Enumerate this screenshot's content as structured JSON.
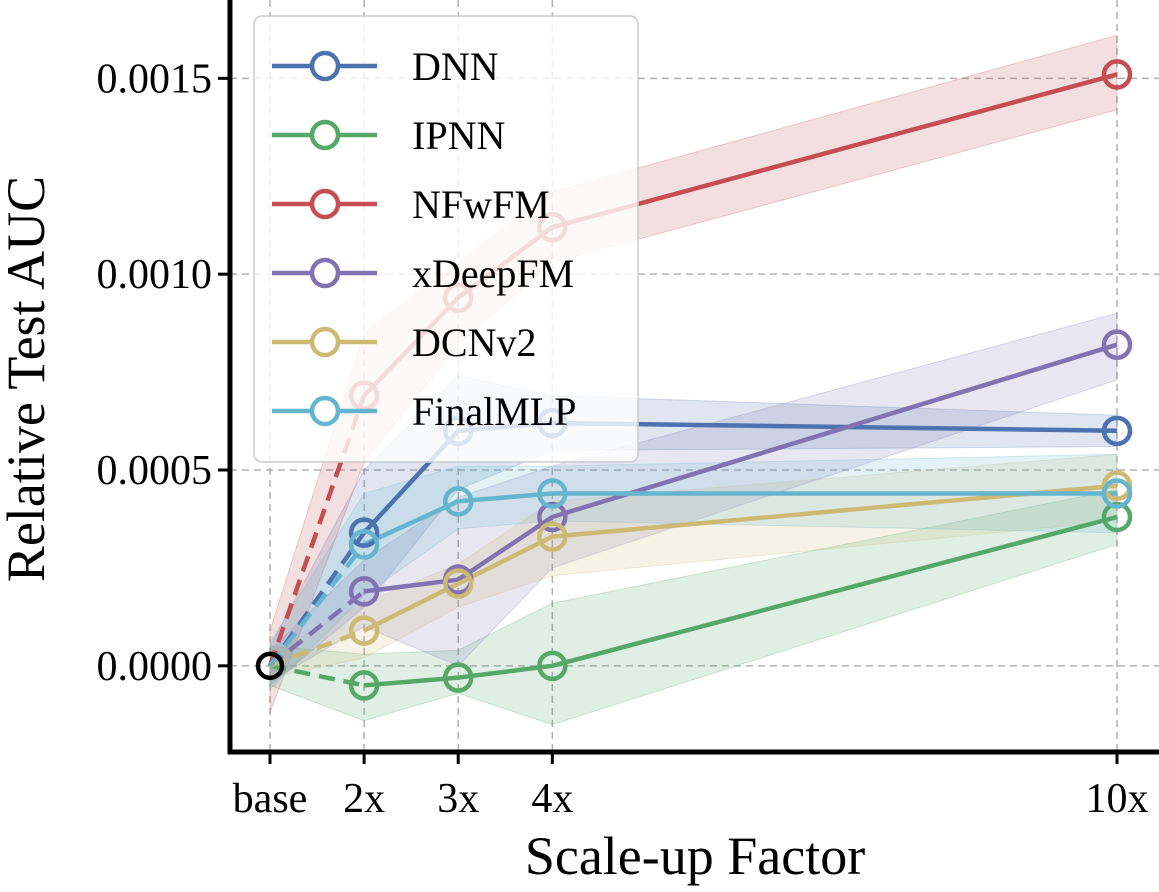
{
  "chart_data": {
    "type": "line",
    "title": "",
    "xlabel": "Scale-up Factor",
    "ylabel": "Relative Test AUC",
    "x": [
      1,
      2,
      3,
      4,
      10
    ],
    "x_tick_labels": [
      "base",
      "2x",
      "3x",
      "4x",
      "10x"
    ],
    "ylim": [
      -0.00022,
      0.0017
    ],
    "y_ticks": [
      0.0,
      0.0005,
      0.001,
      0.0015
    ],
    "y_tick_labels": [
      "0.0000",
      "0.0005",
      "0.0010",
      "0.0015"
    ],
    "grid": true,
    "grid_style": "dashed",
    "legend_position": "top-left",
    "baseline_marker_color": "#000000",
    "segment_style": "dashed from base to 2x, solid afterwards",
    "series": [
      {
        "name": "DNN",
        "color": "#4C72B0",
        "values": [
          0.0,
          0.00034,
          0.0006,
          0.00062,
          0.0006
        ],
        "band_lower": [
          -5e-05,
          0.00015,
          0.00045,
          0.00055,
          0.00056
        ],
        "band_upper": [
          5e-05,
          0.0005,
          0.00074,
          0.00069,
          0.00064
        ]
      },
      {
        "name": "IPNN",
        "color": "#55A868",
        "values": [
          0.0,
          -5e-05,
          -3e-05,
          0.0,
          0.00038
        ],
        "band_lower": [
          -5e-05,
          -0.00014,
          -7e-05,
          -0.00015,
          0.00031
        ],
        "band_upper": [
          5e-05,
          3e-05,
          4e-05,
          0.00016,
          0.00045
        ]
      },
      {
        "name": "NFwFM",
        "color": "#C44E52",
        "values": [
          0.0,
          0.00069,
          0.00094,
          0.00112,
          0.00151
        ],
        "band_lower": [
          -0.00012,
          0.00052,
          0.00082,
          0.00103,
          0.00142
        ],
        "band_upper": [
          9e-05,
          0.00085,
          0.00103,
          0.00121,
          0.00161
        ]
      },
      {
        "name": "xDeepFM",
        "color": "#8172B2",
        "values": [
          0.0,
          0.00019,
          0.00022,
          0.00038,
          0.00082
        ],
        "band_lower": [
          -4e-05,
          0.0001,
          0.0,
          0.00025,
          0.00073
        ],
        "band_upper": [
          4e-05,
          0.00027,
          0.00043,
          0.00051,
          0.0009
        ]
      },
      {
        "name": "DCNv2",
        "color": "#CCB974",
        "values": [
          0.0,
          9e-05,
          0.00021,
          0.00033,
          0.00046
        ],
        "band_lower": [
          -3e-05,
          2e-05,
          0.00015,
          0.00023,
          0.00037
        ],
        "band_upper": [
          3e-05,
          0.00016,
          0.00026,
          0.00042,
          0.00054
        ]
      },
      {
        "name": "FinalMLP",
        "color": "#64B5CD",
        "values": [
          0.0,
          0.00031,
          0.00042,
          0.00044,
          0.00044
        ],
        "band_lower": [
          -6e-05,
          0.00018,
          0.00035,
          0.00037,
          0.00034
        ],
        "band_upper": [
          6e-05,
          0.00044,
          0.00051,
          0.00051,
          0.00054
        ]
      }
    ]
  }
}
